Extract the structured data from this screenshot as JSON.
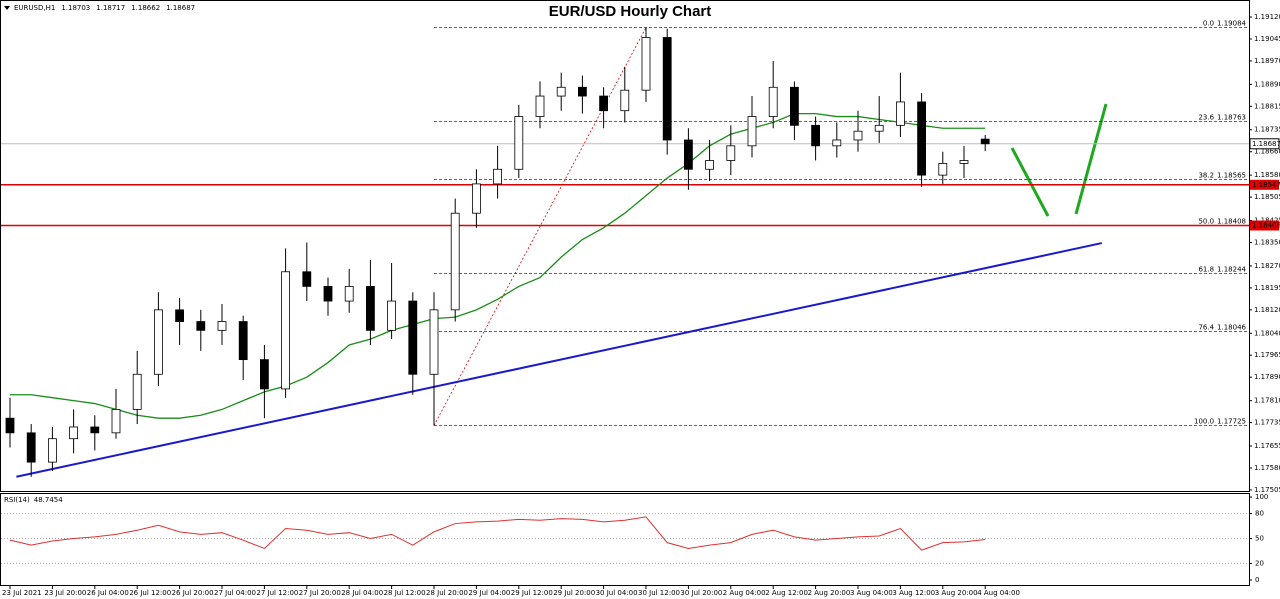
{
  "chart_data": [
    {
      "type": "candlestick",
      "title": "EUR/USD Hourly Chart",
      "symbol": "EURUSD,H1",
      "categories": [
        "23 Jul 2021",
        null,
        "23 Jul 20:00",
        null,
        "26 Jul 04:00",
        null,
        "26 Jul 12:00",
        null,
        "26 Jul 20:00",
        null,
        "27 Jul 04:00",
        null,
        "27 Jul 12:00",
        null,
        "27 Jul 20:00",
        null,
        "28 Jul 04:00",
        null,
        "28 Jul 12:00",
        null,
        "28 Jul 20:00",
        null,
        "29 Jul 04:00",
        null,
        "29 Jul 12:00",
        null,
        "29 Jul 20:00",
        null,
        "30 Jul 04:00",
        null,
        "30 Jul 12:00",
        null,
        "30 Jul 20:00",
        null,
        "2 Aug 04:00",
        null,
        "2 Aug 12:00",
        null,
        "2 Aug 20:00",
        null,
        "3 Aug 04:00",
        null,
        "3 Aug 12:00",
        null,
        "3 Aug 20:00",
        null,
        "4 Aug 04:00"
      ],
      "candles": [
        [
          1.1775,
          1.1782,
          1.1765,
          1.177
        ],
        [
          1.177,
          1.1773,
          1.1755,
          1.176
        ],
        [
          1.176,
          1.1772,
          1.1757,
          1.1768
        ],
        [
          1.1768,
          1.1778,
          1.1763,
          1.1772
        ],
        [
          1.1772,
          1.1776,
          1.1764,
          1.177
        ],
        [
          1.177,
          1.1785,
          1.1768,
          1.1778
        ],
        [
          1.1778,
          1.1798,
          1.1773,
          1.179
        ],
        [
          1.179,
          1.1818,
          1.1786,
          1.1812
        ],
        [
          1.1812,
          1.1816,
          1.18,
          1.1808
        ],
        [
          1.1808,
          1.1812,
          1.1798,
          1.1805
        ],
        [
          1.1805,
          1.1814,
          1.18,
          1.1808
        ],
        [
          1.1808,
          1.181,
          1.1788,
          1.1795
        ],
        [
          1.1795,
          1.18,
          1.1775,
          1.1785
        ],
        [
          1.1785,
          1.1833,
          1.1782,
          1.1825
        ],
        [
          1.1825,
          1.1835,
          1.1815,
          1.182
        ],
        [
          1.182,
          1.1823,
          1.181,
          1.1815
        ],
        [
          1.1815,
          1.1826,
          1.1811,
          1.182
        ],
        [
          1.182,
          1.1829,
          1.18,
          1.1805
        ],
        [
          1.1805,
          1.1828,
          1.1802,
          1.1815
        ],
        [
          1.1815,
          1.1818,
          1.1783,
          1.179
        ],
        [
          1.179,
          1.1818,
          1.17725,
          1.1812
        ],
        [
          1.1812,
          1.185,
          1.1808,
          1.1845
        ],
        [
          1.1845,
          1.186,
          1.184,
          1.1855
        ],
        [
          1.1855,
          1.1868,
          1.185,
          1.186
        ],
        [
          1.186,
          1.1882,
          1.1857,
          1.1878
        ],
        [
          1.1878,
          1.189,
          1.1874,
          1.1885
        ],
        [
          1.1885,
          1.1893,
          1.188,
          1.1888
        ],
        [
          1.1888,
          1.1892,
          1.1879,
          1.1885
        ],
        [
          1.1885,
          1.1888,
          1.1874,
          1.188
        ],
        [
          1.188,
          1.1895,
          1.1876,
          1.1887
        ],
        [
          1.1887,
          1.19084,
          1.1883,
          1.1905
        ],
        [
          1.1905,
          1.1908,
          1.1865,
          1.187
        ],
        [
          1.187,
          1.1874,
          1.1853,
          1.186
        ],
        [
          1.186,
          1.187,
          1.1856,
          1.1863
        ],
        [
          1.1863,
          1.1875,
          1.1858,
          1.1868
        ],
        [
          1.1868,
          1.1885,
          1.1864,
          1.1878
        ],
        [
          1.1878,
          1.1897,
          1.1874,
          1.1888
        ],
        [
          1.1888,
          1.189,
          1.187,
          1.1875
        ],
        [
          1.1875,
          1.1878,
          1.1863,
          1.1868
        ],
        [
          1.1868,
          1.1876,
          1.1864,
          1.187
        ],
        [
          1.187,
          1.188,
          1.1866,
          1.1873
        ],
        [
          1.1873,
          1.1885,
          1.1869,
          1.1875
        ],
        [
          1.1875,
          1.1893,
          1.1871,
          1.1883
        ],
        [
          1.1883,
          1.1886,
          1.1854,
          1.1858
        ],
        [
          1.1858,
          1.1866,
          1.1855,
          1.1862
        ],
        [
          1.1862,
          1.1868,
          1.1857,
          1.1863
        ],
        [
          1.18703,
          1.18717,
          1.18662,
          1.18687
        ]
      ],
      "ma": {
        "color": "#1a8c1a",
        "values": [
          1.1783,
          1.1783,
          1.1782,
          1.1781,
          1.178,
          1.1778,
          1.1776,
          1.1775,
          1.1775,
          1.1776,
          1.1778,
          1.1781,
          1.1784,
          1.1786,
          1.1789,
          1.1794,
          1.18,
          1.1802,
          1.1805,
          1.1807,
          1.1809,
          1.18095,
          1.1812,
          1.18156,
          1.182,
          1.1823,
          1.183,
          1.1836,
          1.184,
          1.1845,
          1.1851,
          1.1857,
          1.1862,
          1.1868,
          1.1872,
          1.1874,
          1.1876,
          1.1879,
          1.1879,
          1.1878,
          1.1878,
          1.1877,
          1.1876,
          1.1875,
          1.1874,
          1.1874,
          1.1874
        ]
      },
      "levels": {
        "color": "#e00000",
        "values": [
          1.18547,
          1.18408
        ]
      },
      "fibonacci": {
        "color": "#2020c0",
        "levels": [
          {
            "ratio": {
              "value": 0,
              "label": "0.0"
            },
            "price": 1.19084
          },
          {
            "ratio": 23.6,
            "price": 1.18763
          },
          {
            "ratio": 38.2,
            "price": 1.18565
          },
          {
            "ratio": {
              "value": 50,
              "label": "50.0"
            },
            "price": 1.18408
          },
          {
            "ratio": 61.8,
            "price": 1.18244
          },
          {
            "ratio": 76.4,
            "price": 1.18046
          },
          {
            "ratio": {
              "value": 100,
              "label": "100.0"
            },
            "price": 1.17725
          }
        ]
      },
      "trendline": {
        "color": "#1a1acc",
        "x": [
          0.3,
          51.5
        ],
        "y": [
          1.1755,
          1.18348
        ]
      },
      "ylim": [
        1.17498,
        1.19178
      ],
      "yticks": [
        {
          "value": 1.1912,
          "label": "1.19120"
        },
        1.19045,
        {
          "value": 1.1897,
          "label": "1.18970"
        },
        {
          "value": 1.1889,
          "label": "1.18890"
        },
        1.18815,
        1.18735,
        {
          "value": 1.1866,
          "label": "1.18660"
        },
        {
          "value": 1.1858,
          "label": "1.18580"
        },
        1.18505,
        1.18425,
        {
          "value": 1.1835,
          "label": "1.18350"
        },
        {
          "value": 1.1827,
          "label": "1.18270"
        },
        1.18195,
        {
          "value": 1.1812,
          "label": "1.18120"
        },
        {
          "value": 1.1804,
          "label": "1.18040"
        },
        1.17965,
        {
          "value": 1.1789,
          "label": "1.17890"
        },
        {
          "value": 1.1781,
          "label": "1.17810"
        },
        1.17735,
        1.17655,
        {
          "value": 1.1758,
          "label": "1.17580"
        },
        1.17505
      ]
    },
    {
      "type": "line",
      "name": "RSI(14)",
      "color": "#e03030",
      "values": [
        48,
        42,
        47,
        50,
        52,
        55,
        60,
        66,
        58,
        55,
        57,
        48,
        38,
        62,
        60,
        55,
        57,
        50,
        55,
        42,
        58,
        68,
        70,
        71,
        73,
        72,
        74,
        73,
        70,
        72,
        76,
        45,
        38,
        42,
        45,
        55,
        60,
        52,
        48,
        50,
        52,
        53,
        62,
        36,
        45,
        46,
        48.7454
      ],
      "ylim": [
        0,
        100
      ],
      "yticks": [
        100,
        80,
        50,
        20,
        0
      ],
      "grid": [
        80,
        50,
        20
      ]
    }
  ]
}
